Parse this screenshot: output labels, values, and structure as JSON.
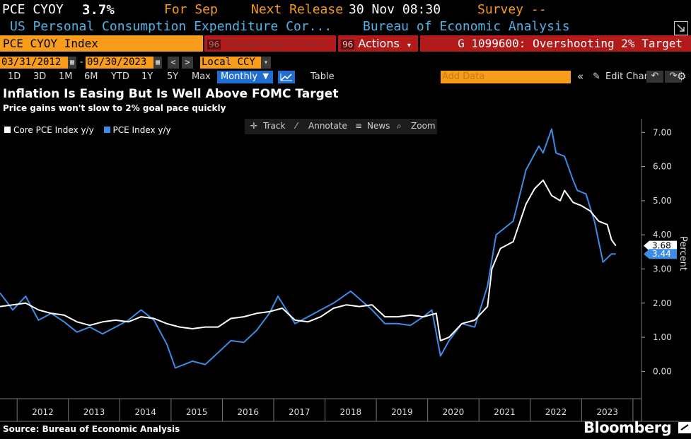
{
  "header": {
    "ticker": "PCE CYOY",
    "value": "3.7%",
    "for_label": "For Sep",
    "next_release_label": "Next Release",
    "next_release_date": "30 Nov 08:30",
    "survey_label": "Survey --"
  },
  "subheader": {
    "description": "US Personal Consumption Expenditure Cor...",
    "source_agency": "Bureau of Economic Analysis"
  },
  "toolbar": {
    "index_name": "PCE CYOY Index",
    "suggested_charts": "Suggested Charts",
    "suggested_charts_num": "96",
    "actions_num": "96",
    "actions_label": "Actions",
    "chart_id": "G 1099600: Overshooting 2% Target"
  },
  "date_range": {
    "start": "03/31/2012",
    "end": "09/30/2023",
    "currency": "Local CCY",
    "prev": "<",
    "next": ">"
  },
  "periods": {
    "items": [
      "1D",
      "3D",
      "1M",
      "6M",
      "YTD",
      "1Y",
      "5Y",
      "Max"
    ],
    "frequency": "Monthly",
    "table_label": "Table",
    "add_data_placeholder": "Add Data",
    "edit_chart_label": "Edit Chart",
    "collapse": "«"
  },
  "title": "Inflation Is Easing But Is Well Above FOMC Target",
  "subtitle": "Price gains won't slow to 2% goal pace quickly",
  "chart_tools": {
    "track": "Track",
    "annotate": "Annotate",
    "news": "News",
    "zoom": "Zoom"
  },
  "footer": {
    "source": "Source: Bureau of Economic Analysis",
    "brand": "Bloomberg"
  },
  "colors": {
    "accent_amber": "#f89d1b",
    "header_blue": "#4fb4e8",
    "toolbar_red": "#b31b1b",
    "series_core": "#ffffff",
    "series_pce": "#3c8ce6"
  },
  "chart_data": {
    "type": "line",
    "xlim": [
      "2011-09",
      "2024-03"
    ],
    "ylim": [
      -0.8,
      7.4
    ],
    "ylabel": "Percent",
    "y_ticks": [
      0.0,
      1.0,
      2.0,
      3.0,
      4.0,
      5.0,
      6.0,
      7.0
    ],
    "y_tick_labels": [
      "0.00",
      "1.00",
      "2.00",
      "3.00",
      "4.00",
      "5.00",
      "6.00",
      "7.00"
    ],
    "x_tick_labels": [
      "2012",
      "2013",
      "2014",
      "2015",
      "2016",
      "2017",
      "2018",
      "2019",
      "2020",
      "2021",
      "2022",
      "2023"
    ],
    "grid": false,
    "legend": "top-left",
    "last_value_labels": [
      {
        "series": "Core PCE Index y/y",
        "label": "3.68"
      },
      {
        "series": "PCE Index y/y",
        "label": "3.44"
      }
    ],
    "series": [
      {
        "name": "Core PCE Index y/y",
        "color": "#ffffff",
        "points": [
          [
            "2011-09",
            1.9
          ],
          [
            "2011-12",
            1.95
          ],
          [
            "2012-03",
            2.0
          ],
          [
            "2012-06",
            1.8
          ],
          [
            "2012-09",
            1.7
          ],
          [
            "2012-12",
            1.65
          ],
          [
            "2013-03",
            1.45
          ],
          [
            "2013-06",
            1.35
          ],
          [
            "2013-09",
            1.45
          ],
          [
            "2013-12",
            1.5
          ],
          [
            "2014-03",
            1.45
          ],
          [
            "2014-06",
            1.6
          ],
          [
            "2014-09",
            1.55
          ],
          [
            "2014-12",
            1.4
          ],
          [
            "2015-03",
            1.3
          ],
          [
            "2015-06",
            1.25
          ],
          [
            "2015-09",
            1.3
          ],
          [
            "2015-12",
            1.3
          ],
          [
            "2016-03",
            1.55
          ],
          [
            "2016-06",
            1.6
          ],
          [
            "2016-09",
            1.7
          ],
          [
            "2016-12",
            1.75
          ],
          [
            "2017-03",
            1.85
          ],
          [
            "2017-06",
            1.5
          ],
          [
            "2017-09",
            1.45
          ],
          [
            "2017-12",
            1.6
          ],
          [
            "2018-03",
            1.85
          ],
          [
            "2018-06",
            1.95
          ],
          [
            "2018-09",
            1.9
          ],
          [
            "2018-12",
            1.95
          ],
          [
            "2019-03",
            1.6
          ],
          [
            "2019-06",
            1.6
          ],
          [
            "2019-09",
            1.65
          ],
          [
            "2019-12",
            1.6
          ],
          [
            "2020-03",
            1.7
          ],
          [
            "2020-04",
            0.9
          ],
          [
            "2020-06",
            1.0
          ],
          [
            "2020-09",
            1.4
          ],
          [
            "2020-12",
            1.5
          ],
          [
            "2021-03",
            1.9
          ],
          [
            "2021-04",
            3.0
          ],
          [
            "2021-06",
            3.6
          ],
          [
            "2021-09",
            3.8
          ],
          [
            "2021-12",
            4.9
          ],
          [
            "2022-02",
            5.35
          ],
          [
            "2022-04",
            5.6
          ],
          [
            "2022-06",
            5.15
          ],
          [
            "2022-08",
            5.0
          ],
          [
            "2022-09",
            5.3
          ],
          [
            "2022-11",
            4.95
          ],
          [
            "2023-01",
            4.85
          ],
          [
            "2023-03",
            4.7
          ],
          [
            "2023-05",
            4.4
          ],
          [
            "2023-07",
            4.3
          ],
          [
            "2023-08",
            3.85
          ],
          [
            "2023-09",
            3.68
          ]
        ]
      },
      {
        "name": "PCE Index y/y",
        "color": "#3c8ce6",
        "points": [
          [
            "2011-09",
            2.3
          ],
          [
            "2011-12",
            1.8
          ],
          [
            "2012-03",
            2.2
          ],
          [
            "2012-06",
            1.5
          ],
          [
            "2012-09",
            1.7
          ],
          [
            "2012-12",
            1.45
          ],
          [
            "2013-03",
            1.15
          ],
          [
            "2013-06",
            1.3
          ],
          [
            "2013-09",
            1.1
          ],
          [
            "2013-12",
            1.3
          ],
          [
            "2014-03",
            1.5
          ],
          [
            "2014-06",
            1.8
          ],
          [
            "2014-09",
            1.5
          ],
          [
            "2014-12",
            0.8
          ],
          [
            "2015-02",
            0.1
          ],
          [
            "2015-06",
            0.3
          ],
          [
            "2015-09",
            0.2
          ],
          [
            "2015-12",
            0.55
          ],
          [
            "2016-03",
            0.9
          ],
          [
            "2016-06",
            0.85
          ],
          [
            "2016-09",
            1.2
          ],
          [
            "2016-12",
            1.7
          ],
          [
            "2017-02",
            2.2
          ],
          [
            "2017-06",
            1.4
          ],
          [
            "2017-09",
            1.6
          ],
          [
            "2017-12",
            1.8
          ],
          [
            "2018-03",
            2.0
          ],
          [
            "2018-07",
            2.35
          ],
          [
            "2018-12",
            1.8
          ],
          [
            "2019-03",
            1.4
          ],
          [
            "2019-06",
            1.4
          ],
          [
            "2019-09",
            1.35
          ],
          [
            "2019-12",
            1.6
          ],
          [
            "2020-02",
            1.8
          ],
          [
            "2020-04",
            0.45
          ],
          [
            "2020-06",
            0.9
          ],
          [
            "2020-09",
            1.4
          ],
          [
            "2020-12",
            1.3
          ],
          [
            "2021-03",
            2.5
          ],
          [
            "2021-05",
            4.0
          ],
          [
            "2021-09",
            4.4
          ],
          [
            "2021-12",
            5.9
          ],
          [
            "2022-03",
            6.6
          ],
          [
            "2022-04",
            6.4
          ],
          [
            "2022-06",
            7.1
          ],
          [
            "2022-07",
            6.4
          ],
          [
            "2022-09",
            6.3
          ],
          [
            "2022-11",
            5.6
          ],
          [
            "2022-12",
            5.3
          ],
          [
            "2023-02",
            5.2
          ],
          [
            "2023-04",
            4.4
          ],
          [
            "2023-06",
            3.2
          ],
          [
            "2023-08",
            3.44
          ],
          [
            "2023-09",
            3.44
          ]
        ]
      }
    ]
  }
}
